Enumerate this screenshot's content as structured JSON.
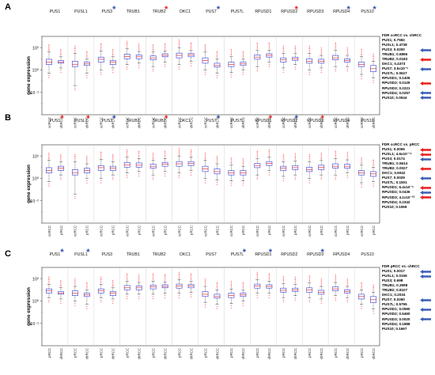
{
  "figure": {
    "genes": [
      "PUS1",
      "PUSL1",
      "PUS3",
      "TRUB1",
      "TRUB2",
      "DKC1",
      "PUS7",
      "PUS7L",
      "RPUSD1",
      "RPUSD2",
      "RPUSD3",
      "RPUSD4",
      "PUS10"
    ],
    "ylabel": "gene expression",
    "colors": {
      "box": "#3b3bd6",
      "median": "#e03030",
      "outlier": "#ff2a2a",
      "whisker": "#222222",
      "star_red": "#e8201c",
      "star_blue": "#2d4fa8",
      "arrow_red": "#e8201c",
      "arrow_blue": "#3a5fb5"
    }
  },
  "panels": [
    {
      "letter": "A",
      "groups": [
        "ccRCC",
        "chRCC"
      ],
      "stars": [
        "none",
        "none",
        "blue",
        "none",
        "red",
        "none",
        "blue",
        "none",
        "none",
        "red",
        "none",
        "blue",
        "blue"
      ],
      "fdr_title": "FDR ccRCC vs. chRCC",
      "fdr": [
        {
          "text": "PUS1; 0.7592",
          "arrow": "none"
        },
        {
          "text": "PUSL1; 0.4738",
          "arrow": "none"
        },
        {
          "text": "PUS3; 0.0200",
          "arrow": "blue"
        },
        {
          "text": "TRUB1; 0.6896",
          "arrow": "none"
        },
        {
          "text": "TRUB2; 0.0183",
          "arrow": "red"
        },
        {
          "text": "DKC1; 0.4373",
          "arrow": "none"
        },
        {
          "text": "PUS7; 3.5x10⁻⁵",
          "arrow": "blue"
        },
        {
          "text": "PUS7L; 0.0627",
          "arrow": "none"
        },
        {
          "text": "RPUSD1; 0.1406",
          "arrow": "none"
        },
        {
          "text": "RPUSD2; 0.0125",
          "arrow": "red"
        },
        {
          "text": "RPUSD3; 0.2221",
          "arrow": "none"
        },
        {
          "text": "RPUSD4; 0.0257",
          "arrow": "blue"
        },
        {
          "text": "PUS10; 0.0044",
          "arrow": "blue"
        }
      ]
    },
    {
      "letter": "B",
      "groups": [
        "ccRCC",
        "pRCC"
      ],
      "stars": [
        "red",
        "red",
        "blue",
        "none",
        "red",
        "none",
        "blue",
        "none",
        "red",
        "blue",
        "red",
        "none",
        "none"
      ],
      "fdr_title": "FDR ccRCC vs. pRCC",
      "fdr": [
        {
          "text": "PUS1; 0.0006",
          "arrow": "red"
        },
        {
          "text": "PUSL1; 4.6x10⁻¹⁶",
          "arrow": "red"
        },
        {
          "text": "PUS3; 0.0174",
          "arrow": "blue"
        },
        {
          "text": "TRUB1; 0.5614",
          "arrow": "none"
        },
        {
          "text": "TRUB2; 0.0027",
          "arrow": "red"
        },
        {
          "text": "DKC1; 0.6042",
          "arrow": "none"
        },
        {
          "text": "PUS7; 0.0029",
          "arrow": "blue"
        },
        {
          "text": "PUS7L; 0.1501",
          "arrow": "none"
        },
        {
          "text": "RPUSD1; 6.4x10⁻⁶",
          "arrow": "red"
        },
        {
          "text": "RPUSD2; 0.0436",
          "arrow": "blue"
        },
        {
          "text": "RPUSD3; 4.1x10⁻¹⁰",
          "arrow": "red"
        },
        {
          "text": "RPUSD4; 0.2342",
          "arrow": "none"
        },
        {
          "text": "PUS10; 0.1069",
          "arrow": "none"
        }
      ]
    },
    {
      "letter": "C",
      "groups": [
        "pRCC",
        "chRCC"
      ],
      "stars": [
        "blue",
        "blue",
        "none",
        "none",
        "none",
        "none",
        "none",
        "blue",
        "blue",
        "none",
        "blue",
        "none",
        "none"
      ],
      "fdr_title": "FDR pRCC vs. chRCC",
      "fdr": [
        {
          "text": "PUS1; 0.0017",
          "arrow": "blue"
        },
        {
          "text": "PUSL1; 0.0156",
          "arrow": "blue"
        },
        {
          "text": "PUS3; 0.698",
          "arrow": "none"
        },
        {
          "text": "TRUB1; 0.3598",
          "arrow": "none"
        },
        {
          "text": "TRUB2; 0.8107",
          "arrow": "none"
        },
        {
          "text": "DKC1; 0.2034",
          "arrow": "none"
        },
        {
          "text": "PUS7; 0.0260",
          "arrow": "blue"
        },
        {
          "text": "PUS7L; 0.5795",
          "arrow": "none"
        },
        {
          "text": "RPUSD1; 0.0590",
          "arrow": "blue"
        },
        {
          "text": "RPUSD2; 0.5460",
          "arrow": "none"
        },
        {
          "text": "RPUSD3; 0.0020",
          "arrow": "blue"
        },
        {
          "text": "RPUSD4; 0.1888",
          "arrow": "none"
        },
        {
          "text": "PUS10; 0.1667",
          "arrow": "none"
        }
      ]
    }
  ],
  "chart_data": [
    {
      "type": "box",
      "title": "",
      "panel": "A",
      "ylabel": "gene expression",
      "yscale": "log",
      "ylim": [
        0.0001,
        1000
      ],
      "yticks": [
        "10⁻²",
        "10⁰",
        "10²"
      ],
      "categories": [
        "PUS1",
        "PUSL1",
        "PUS3",
        "TRUB1",
        "TRUB2",
        "DKC1",
        "PUS7",
        "PUS7L",
        "RPUSD1",
        "RPUSD2",
        "RPUSD3",
        "RPUSD4",
        "PUS10"
      ],
      "series": [
        {
          "name": "ccRCC",
          "boxes": [
            {
              "min": 0.5,
              "q1": 3,
              "median": 5,
              "q3": 9,
              "max": 40
            },
            {
              "min": 0.04,
              "q1": 2,
              "median": 3.2,
              "q3": 6,
              "max": 30
            },
            {
              "min": 1,
              "q1": 5,
              "median": 9,
              "q3": 14,
              "max": 50
            },
            {
              "min": 3,
              "q1": 10,
              "median": 16,
              "q3": 26,
              "max": 80
            },
            {
              "min": 2,
              "q1": 8,
              "median": 12,
              "q3": 18,
              "max": 40
            },
            {
              "min": 3,
              "q1": 12,
              "median": 20,
              "q3": 32,
              "max": 100
            },
            {
              "min": 1,
              "q1": 4,
              "median": 7,
              "q3": 12,
              "max": 40
            },
            {
              "min": 0.6,
              "q1": 2,
              "median": 3,
              "q3": 5,
              "max": 15
            },
            {
              "min": 2,
              "q1": 9,
              "median": 14,
              "q3": 22,
              "max": 60
            },
            {
              "min": 1.5,
              "q1": 5,
              "median": 8,
              "q3": 12,
              "max": 30
            },
            {
              "min": 1,
              "q1": 4,
              "median": 6,
              "q3": 10,
              "max": 30
            },
            {
              "min": 2,
              "q1": 8,
              "median": 12,
              "q3": 20,
              "max": 60
            },
            {
              "min": 0.4,
              "q1": 2,
              "median": 3,
              "q3": 5,
              "max": 15
            }
          ]
        },
        {
          "name": "chRCC",
          "boxes": [
            {
              "min": 1.5,
              "q1": 4,
              "median": 5,
              "q3": 7,
              "max": 15
            },
            {
              "min": 0.5,
              "q1": 2.5,
              "median": 3.5,
              "q3": 5,
              "max": 10
            },
            {
              "min": 1.5,
              "q1": 3,
              "median": 5,
              "q3": 7,
              "max": 15
            },
            {
              "min": 4,
              "q1": 10,
              "median": 15,
              "q3": 22,
              "max": 45
            },
            {
              "min": 5,
              "q1": 15,
              "median": 20,
              "q3": 28,
              "max": 50
            },
            {
              "min": 6,
              "q1": 15,
              "median": 22,
              "q3": 30,
              "max": 60
            },
            {
              "min": 0.5,
              "q1": 1.8,
              "median": 2.5,
              "q3": 4,
              "max": 10
            },
            {
              "min": 1,
              "q1": 2.5,
              "median": 3.5,
              "q3": 5,
              "max": 10
            },
            {
              "min": 5,
              "q1": 14,
              "median": 20,
              "q3": 28,
              "max": 60
            },
            {
              "min": 3,
              "q1": 7,
              "median": 10,
              "q3": 14,
              "max": 30
            },
            {
              "min": 1.5,
              "q1": 4,
              "median": 6,
              "q3": 9,
              "max": 20
            },
            {
              "min": 2,
              "q1": 5,
              "median": 7,
              "q3": 10,
              "max": 20
            },
            {
              "min": 0.2,
              "q1": 0.7,
              "median": 1.3,
              "q3": 2.5,
              "max": 6
            }
          ]
        }
      ]
    },
    {
      "type": "box",
      "title": "",
      "panel": "B",
      "ylabel": "gene expression",
      "yscale": "log",
      "ylim": [
        0.0001,
        1000
      ],
      "yticks": [
        "10⁻²",
        "10⁰",
        "10²"
      ],
      "categories": [
        "PUS1",
        "PUSL1",
        "PUS3",
        "TRUB1",
        "TRUB2",
        "DKC1",
        "PUS7",
        "PUS7L",
        "RPUSD1",
        "RPUSD2",
        "RPUSD3",
        "RPUSD4",
        "PUS10"
      ],
      "series": [
        {
          "name": "ccRCC",
          "boxes": [
            {
              "min": 0.5,
              "q1": 3,
              "median": 5,
              "q3": 9,
              "max": 40
            },
            {
              "min": 0.04,
              "q1": 2,
              "median": 3.2,
              "q3": 6,
              "max": 30
            },
            {
              "min": 1,
              "q1": 5,
              "median": 9,
              "q3": 14,
              "max": 50
            },
            {
              "min": 3,
              "q1": 10,
              "median": 16,
              "q3": 26,
              "max": 80
            },
            {
              "min": 2,
              "q1": 8,
              "median": 12,
              "q3": 18,
              "max": 40
            },
            {
              "min": 3,
              "q1": 12,
              "median": 20,
              "q3": 32,
              "max": 100
            },
            {
              "min": 1,
              "q1": 4,
              "median": 7,
              "q3": 12,
              "max": 40
            },
            {
              "min": 0.6,
              "q1": 2,
              "median": 3,
              "q3": 5,
              "max": 15
            },
            {
              "min": 2,
              "q1": 9,
              "median": 14,
              "q3": 22,
              "max": 60
            },
            {
              "min": 1.5,
              "q1": 5,
              "median": 8,
              "q3": 12,
              "max": 30
            },
            {
              "min": 1,
              "q1": 4,
              "median": 6,
              "q3": 10,
              "max": 30
            },
            {
              "min": 2,
              "q1": 8,
              "median": 12,
              "q3": 20,
              "max": 60
            },
            {
              "min": 0.4,
              "q1": 2,
              "median": 3,
              "q3": 5,
              "max": 15
            }
          ]
        },
        {
          "name": "pRCC",
          "boxes": [
            {
              "min": 2,
              "q1": 5,
              "median": 8,
              "q3": 12,
              "max": 30
            },
            {
              "min": 1,
              "q1": 3,
              "median": 5,
              "q3": 8,
              "max": 20
            },
            {
              "min": 2,
              "q1": 5,
              "median": 8,
              "q3": 12,
              "max": 30
            },
            {
              "min": 4,
              "q1": 10,
              "median": 15,
              "q3": 24,
              "max": 60
            },
            {
              "min": 4,
              "q1": 12,
              "median": 18,
              "q3": 26,
              "max": 60
            },
            {
              "min": 5,
              "q1": 14,
              "median": 22,
              "q3": 32,
              "max": 80
            },
            {
              "min": 0.7,
              "q1": 2.5,
              "median": 4,
              "q3": 7,
              "max": 20
            },
            {
              "min": 0.6,
              "q1": 2,
              "median": 3,
              "q3": 5,
              "max": 12
            },
            {
              "min": 5,
              "q1": 14,
              "median": 22,
              "q3": 32,
              "max": 80
            },
            {
              "min": 2,
              "q1": 6,
              "median": 9,
              "q3": 14,
              "max": 35
            },
            {
              "min": 2,
              "q1": 6,
              "median": 10,
              "q3": 15,
              "max": 40
            },
            {
              "min": 3,
              "q1": 8,
              "median": 12,
              "q3": 18,
              "max": 45
            },
            {
              "min": 0.5,
              "q1": 1.5,
              "median": 2.5,
              "q3": 4,
              "max": 10
            }
          ]
        }
      ]
    },
    {
      "type": "box",
      "title": "",
      "panel": "C",
      "ylabel": "gene expression",
      "yscale": "log",
      "ylim": [
        0.0001,
        1000
      ],
      "yticks": [
        "10⁻²",
        "10⁰",
        "10²"
      ],
      "categories": [
        "PUS1",
        "PUSL1",
        "PUS3",
        "TRUB1",
        "TRUB2",
        "DKC1",
        "PUS7",
        "PUS7L",
        "RPUSD1",
        "RPUSD2",
        "RPUSD3",
        "RPUSD4",
        "PUS10"
      ],
      "series": [
        {
          "name": "pRCC",
          "boxes": [
            {
              "min": 2,
              "q1": 5,
              "median": 8,
              "q3": 12,
              "max": 30
            },
            {
              "min": 1,
              "q1": 3,
              "median": 5,
              "q3": 8,
              "max": 20
            },
            {
              "min": 2,
              "q1": 5,
              "median": 8,
              "q3": 12,
              "max": 30
            },
            {
              "min": 4,
              "q1": 10,
              "median": 15,
              "q3": 24,
              "max": 60
            },
            {
              "min": 4,
              "q1": 12,
              "median": 18,
              "q3": 26,
              "max": 60
            },
            {
              "min": 5,
              "q1": 14,
              "median": 22,
              "q3": 32,
              "max": 80
            },
            {
              "min": 0.7,
              "q1": 2.5,
              "median": 4,
              "q3": 7,
              "max": 20
            },
            {
              "min": 0.6,
              "q1": 2,
              "median": 3,
              "q3": 5,
              "max": 12
            },
            {
              "min": 5,
              "q1": 14,
              "median": 22,
              "q3": 32,
              "max": 80
            },
            {
              "min": 2,
              "q1": 6,
              "median": 9,
              "q3": 14,
              "max": 35
            },
            {
              "min": 2,
              "q1": 6,
              "median": 10,
              "q3": 15,
              "max": 40
            },
            {
              "min": 3,
              "q1": 8,
              "median": 12,
              "q3": 18,
              "max": 45
            },
            {
              "min": 0.5,
              "q1": 1.5,
              "median": 2.5,
              "q3": 4,
              "max": 10
            }
          ]
        },
        {
          "name": "chRCC",
          "boxes": [
            {
              "min": 1.5,
              "q1": 4,
              "median": 5,
              "q3": 7,
              "max": 15
            },
            {
              "min": 0.5,
              "q1": 2.5,
              "median": 3.5,
              "q3": 5,
              "max": 10
            },
            {
              "min": 1.5,
              "q1": 3,
              "median": 5,
              "q3": 7,
              "max": 15
            },
            {
              "min": 4,
              "q1": 10,
              "median": 15,
              "q3": 22,
              "max": 45
            },
            {
              "min": 5,
              "q1": 15,
              "median": 20,
              "q3": 28,
              "max": 50
            },
            {
              "min": 6,
              "q1": 15,
              "median": 22,
              "q3": 30,
              "max": 60
            },
            {
              "min": 0.5,
              "q1": 1.8,
              "median": 2.5,
              "q3": 4,
              "max": 10
            },
            {
              "min": 1,
              "q1": 2.5,
              "median": 3.5,
              "q3": 5,
              "max": 10
            },
            {
              "min": 5,
              "q1": 14,
              "median": 20,
              "q3": 28,
              "max": 60
            },
            {
              "min": 3,
              "q1": 7,
              "median": 10,
              "q3": 14,
              "max": 30
            },
            {
              "min": 1.5,
              "q1": 4,
              "median": 6,
              "q3": 9,
              "max": 20
            },
            {
              "min": 2,
              "q1": 5,
              "median": 7,
              "q3": 10,
              "max": 20
            },
            {
              "min": 0.2,
              "q1": 0.7,
              "median": 1.3,
              "q3": 2.5,
              "max": 6
            }
          ]
        }
      ]
    }
  ]
}
